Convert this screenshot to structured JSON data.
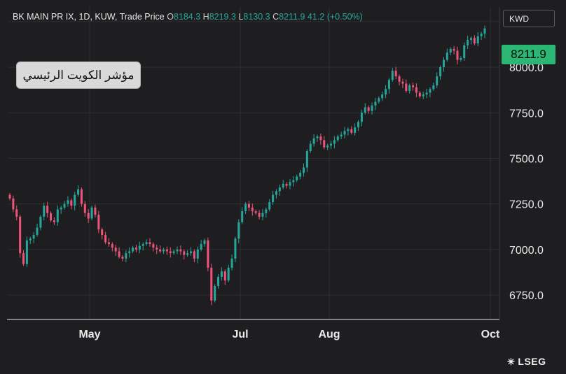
{
  "header": {
    "instrument": "BK MAIN PR IX, 1D, KUW, Trade Price",
    "open_label": "O",
    "open": "8184.3",
    "high_label": "H",
    "high": "8219.3",
    "low_label": "L",
    "low": "8130.3",
    "close_label": "C",
    "close": "8211.9",
    "change": "41.2 (+0.50%)"
  },
  "annotation_label": "مؤشر الكويت الرئيسي",
  "currency": "KWD",
  "last_price_tag": "8211.9",
  "brand": "LSEG",
  "colors": {
    "up": "#26a69a",
    "down": "#ef5379",
    "last_tag": "#2bb673",
    "background": "#1e1e20",
    "grid": "#2e2e30"
  },
  "chart_data": {
    "type": "candlestick",
    "title": "",
    "xlabel": "",
    "ylabel": "",
    "ylim": [
      6620,
      8330
    ],
    "y_ticks": [
      6750,
      7000,
      7250,
      7500,
      7750,
      8000
    ],
    "y_tick_labels": [
      "6750.0",
      "7000.0",
      "7250.0",
      "7500.0",
      "7750.0",
      "8000.0"
    ],
    "x_ticks": [
      "May",
      "Jul",
      "Aug",
      "Oct"
    ],
    "grid": true,
    "closes": [
      7280,
      7220,
      7180,
      6980,
      6920,
      7050,
      7060,
      7080,
      7120,
      7180,
      7240,
      7200,
      7160,
      7150,
      7220,
      7230,
      7250,
      7270,
      7240,
      7300,
      7330,
      7250,
      7200,
      7170,
      7230,
      7190,
      7110,
      7080,
      7040,
      7030,
      7010,
      6990,
      6960,
      6950,
      6980,
      6990,
      7010,
      7000,
      7020,
      7030,
      7040,
      7030,
      7010,
      7000,
      6990,
      7000,
      6990,
      6980,
      6990,
      7000,
      6990,
      6970,
      6980,
      6990,
      6950,
      7000,
      7030,
      7050,
      6900,
      6720,
      6800,
      6850,
      6880,
      6830,
      6900,
      6950,
      7060,
      7150,
      7210,
      7250,
      7230,
      7210,
      7200,
      7180,
      7200,
      7220,
      7260,
      7300,
      7320,
      7340,
      7360,
      7350,
      7370,
      7380,
      7400,
      7420,
      7450,
      7540,
      7580,
      7610,
      7620,
      7600,
      7560,
      7570,
      7580,
      7600,
      7620,
      7630,
      7650,
      7660,
      7640,
      7670,
      7700,
      7750,
      7780,
      7760,
      7790,
      7810,
      7830,
      7850,
      7880,
      7930,
      7980,
      7950,
      7920,
      7910,
      7870,
      7900,
      7890,
      7860,
      7840,
      7850,
      7860,
      7880,
      7900,
      7950,
      8000,
      8040,
      8080,
      8100,
      8090,
      8040,
      8050,
      8120,
      8150,
      8160,
      8130,
      8170,
      8184,
      8212
    ]
  }
}
